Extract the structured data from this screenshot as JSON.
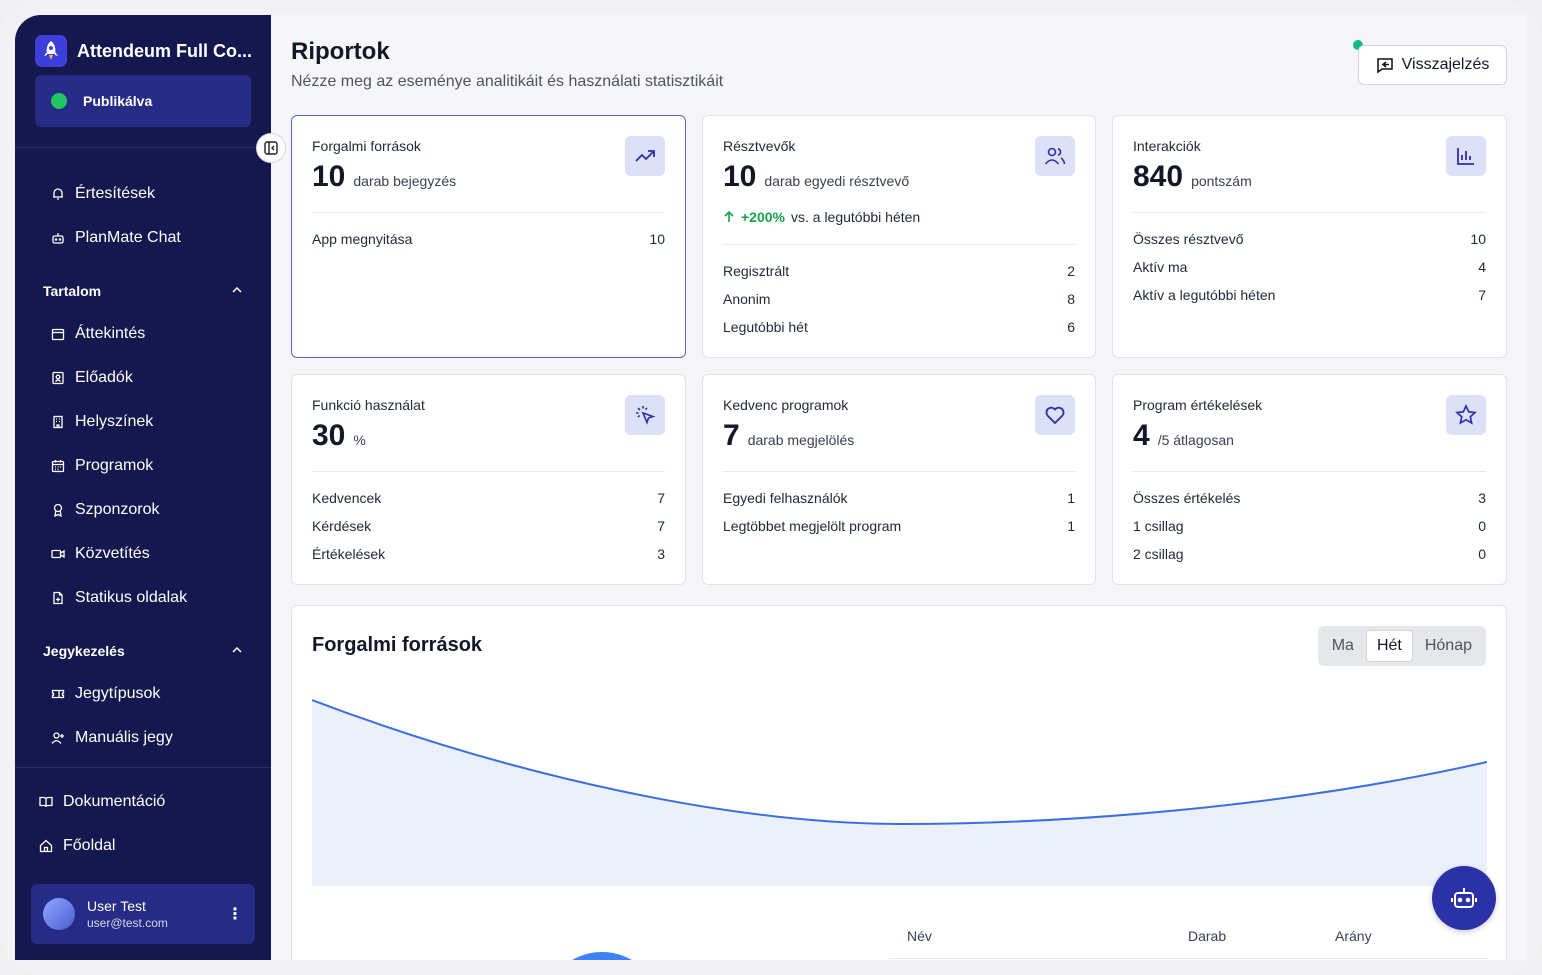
{
  "app": {
    "title": "Attendeum Full Co...",
    "status": "Publikálva"
  },
  "sidebar": {
    "top_items": [
      {
        "label": "Értesítések",
        "icon": "bell-icon"
      },
      {
        "label": "PlanMate Chat",
        "icon": "bot-icon"
      }
    ],
    "sections": [
      {
        "title": "Tartalom",
        "items": [
          {
            "label": "Áttekintés",
            "icon": "calendar-icon"
          },
          {
            "label": "Előadók",
            "icon": "contact-icon"
          },
          {
            "label": "Helyszínek",
            "icon": "building-icon"
          },
          {
            "label": "Programok",
            "icon": "calendar-days-icon"
          },
          {
            "label": "Szponzorok",
            "icon": "award-icon"
          },
          {
            "label": "Közvetítés",
            "icon": "video-icon"
          },
          {
            "label": "Statikus oldalak",
            "icon": "file-icon"
          }
        ]
      },
      {
        "title": "Jegykezelés",
        "items": [
          {
            "label": "Jegytípusok",
            "icon": "ticket-icon"
          },
          {
            "label": "Manuális jegy",
            "icon": "user-plus-icon"
          }
        ]
      }
    ],
    "bottom_items": [
      {
        "label": "Dokumentáció",
        "icon": "book-icon"
      },
      {
        "label": "Főoldal",
        "icon": "home-icon"
      }
    ],
    "user": {
      "name": "User Test",
      "email": "user@test.com"
    }
  },
  "header": {
    "title": "Riportok",
    "subtitle": "Nézze meg az eseménye analitikáit és használati statisztikáit",
    "feedback_label": "Visszajelzés"
  },
  "cards": [
    {
      "label": "Forgalmi források",
      "value": "10",
      "unit": "darab bejegyzés",
      "icon": "trending-up-icon",
      "rows": [
        {
          "k": "App megnyitása",
          "v": "10"
        }
      ]
    },
    {
      "label": "Résztvevők",
      "value": "10",
      "unit": "darab egyedi résztvevő",
      "icon": "users-icon",
      "trend": {
        "value": "+200%",
        "text": "vs. a legutóbbi héten"
      },
      "rows": [
        {
          "k": "Regisztrált",
          "v": "2"
        },
        {
          "k": "Anonim",
          "v": "8"
        },
        {
          "k": "Legutóbbi hét",
          "v": "6"
        }
      ]
    },
    {
      "label": "Interakciók",
      "value": "840",
      "unit": "pontszám",
      "icon": "bar-chart-icon",
      "rows": [
        {
          "k": "Összes résztvevő",
          "v": "10"
        },
        {
          "k": "Aktív ma",
          "v": "4"
        },
        {
          "k": "Aktív a legutóbbi héten",
          "v": "7"
        }
      ]
    },
    {
      "label": "Funkció használat",
      "value": "30",
      "unit": "%",
      "icon": "pointer-click-icon",
      "rows": [
        {
          "k": "Kedvencek",
          "v": "7"
        },
        {
          "k": "Kérdések",
          "v": "7"
        },
        {
          "k": "Értékelések",
          "v": "3"
        }
      ]
    },
    {
      "label": "Kedvenc programok",
      "value": "7",
      "unit": "darab megjelölés",
      "icon": "heart-icon",
      "rows": [
        {
          "k": "Egyedi felhasználók",
          "v": "1"
        },
        {
          "k": "Legtöbbet megjelölt program",
          "v": "1"
        }
      ]
    },
    {
      "label": "Program értékelések",
      "value": "4",
      "unit": "/5 átlagosan",
      "icon": "star-icon",
      "rows": [
        {
          "k": "Összes értékelés",
          "v": "3"
        },
        {
          "k": "1 csillag",
          "v": "0"
        },
        {
          "k": "2 csillag",
          "v": "0"
        }
      ]
    }
  ],
  "traffic_panel": {
    "title": "Forgalmi források",
    "ranges": [
      "Ma",
      "Hét",
      "Hónap"
    ],
    "selected_range": "Hét",
    "table_headers": [
      "Név",
      "Darab",
      "Arány"
    ]
  },
  "colors": {
    "sidebar": "#15184f",
    "accent": "#2b31a6",
    "line": "#3b6fe0",
    "area": "#ecf0fb",
    "success": "#16a34a"
  }
}
